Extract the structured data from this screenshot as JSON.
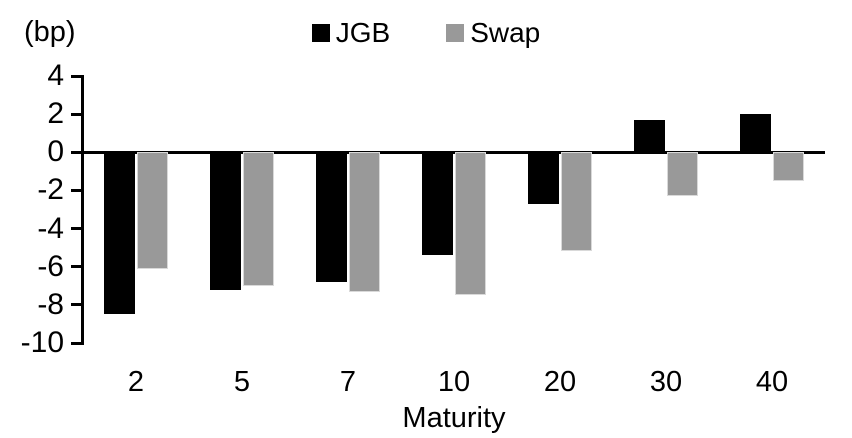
{
  "chart_data": {
    "type": "bar",
    "title": "",
    "unit_label": "(bp)",
    "xlabel": "Maturity",
    "categories": [
      "2",
      "5",
      "7",
      "10",
      "20",
      "30",
      "40"
    ],
    "series": [
      {
        "name": "JGB",
        "color": "#000000",
        "values": [
          -8.5,
          -7.2,
          -6.8,
          -5.4,
          -2.7,
          1.7,
          2.0
        ]
      },
      {
        "name": "Swap",
        "color": "#999999",
        "values": [
          -6.1,
          -7.0,
          -7.3,
          -7.5,
          -5.2,
          -2.3,
          -1.5
        ]
      }
    ],
    "ylim": [
      -10,
      4
    ],
    "yticks": [
      4,
      2,
      0,
      -2,
      -4,
      -6,
      -8,
      -10
    ],
    "grid": false,
    "legend_position": "top-center"
  },
  "colors": {
    "axis": "#000000",
    "background": "#ffffff",
    "jgb_bar": "#000000",
    "swap_bar": "#999999",
    "swap_bar_border": "#d9d9d9"
  }
}
